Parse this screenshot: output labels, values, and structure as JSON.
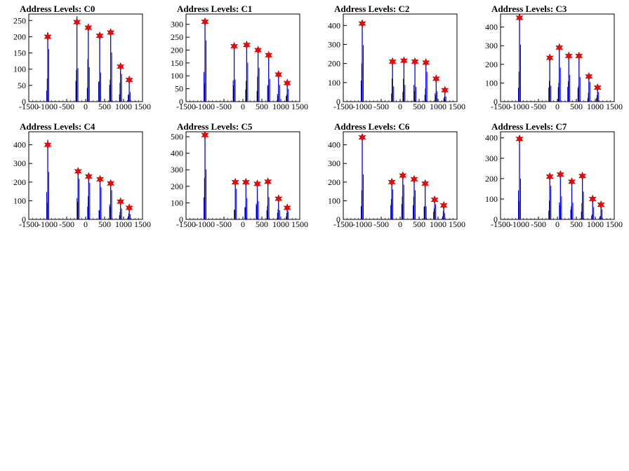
{
  "colors": {
    "histogram": "#0000ff",
    "marker": "#ff0000",
    "axis": "#000000"
  },
  "panels": [
    {
      "title": "Address Levels: C0",
      "yticks": [
        0,
        50,
        100,
        150,
        200,
        250
      ],
      "ymax": 270
    },
    {
      "title": "Address Levels: C1",
      "yticks": [
        0,
        50,
        100,
        150,
        200,
        250,
        300
      ],
      "ymax": 340
    },
    {
      "title": "Address Levels: C2",
      "yticks": [
        0,
        100,
        200,
        300,
        400
      ],
      "ymax": 460
    },
    {
      "title": "Address Levels: C3",
      "yticks": [
        0,
        100,
        200,
        300,
        400
      ],
      "ymax": 470
    },
    {
      "title": "Address Levels: C4",
      "yticks": [
        0,
        100,
        200,
        300,
        400
      ],
      "ymax": 470
    },
    {
      "title": "Address Levels: C5",
      "yticks": [
        0,
        100,
        200,
        300,
        400,
        500
      ],
      "ymax": 530
    },
    {
      "title": "Address Levels: C6",
      "yticks": [
        0,
        100,
        200,
        300,
        400
      ],
      "ymax": 470
    },
    {
      "title": "Address Levels: C7",
      "yticks": [
        0,
        100,
        200,
        300,
        400
      ],
      "ymax": 430
    }
  ],
  "chart_data": [
    {
      "type": "bar",
      "title": "Address Levels: C0",
      "xlim": [
        -1500,
        1500
      ],
      "ylim": [
        0,
        270
      ],
      "xticks": [
        "-1500",
        "-1000",
        "-500",
        "0",
        "500",
        "1000",
        "1500"
      ],
      "yticks": [
        "0",
        "50",
        "100",
        "150",
        "200",
        "250"
      ],
      "peaks": [
        {
          "x": -1000,
          "y": 200
        },
        {
          "x": -230,
          "y": 245
        },
        {
          "x": 70,
          "y": 228
        },
        {
          "x": 370,
          "y": 203
        },
        {
          "x": 660,
          "y": 213
        },
        {
          "x": 920,
          "y": 108
        },
        {
          "x": 1150,
          "y": 67
        }
      ]
    },
    {
      "type": "bar",
      "title": "Address Levels: C1",
      "xlim": [
        -1500,
        1500
      ],
      "ylim": [
        0,
        340
      ],
      "xticks": [
        "-1500",
        "-1000",
        "-500",
        "0",
        "500",
        "1000",
        "1500"
      ],
      "yticks": [
        "0",
        "50",
        "100",
        "150",
        "200",
        "250",
        "300"
      ],
      "peaks": [
        {
          "x": -1000,
          "y": 310
        },
        {
          "x": -230,
          "y": 215
        },
        {
          "x": 100,
          "y": 220
        },
        {
          "x": 400,
          "y": 200
        },
        {
          "x": 680,
          "y": 180
        },
        {
          "x": 940,
          "y": 105
        },
        {
          "x": 1170,
          "y": 72
        }
      ]
    },
    {
      "type": "bar",
      "title": "Address Levels: C2",
      "xlim": [
        -1500,
        1500
      ],
      "ylim": [
        0,
        460
      ],
      "xticks": [
        "-1500",
        "-1000",
        "-500",
        "0",
        "500",
        "1000",
        "1500"
      ],
      "yticks": [
        "0",
        "100",
        "200",
        "300",
        "400"
      ],
      "peaks": [
        {
          "x": -1000,
          "y": 410
        },
        {
          "x": -200,
          "y": 210
        },
        {
          "x": 100,
          "y": 215
        },
        {
          "x": 390,
          "y": 210
        },
        {
          "x": 680,
          "y": 205
        },
        {
          "x": 950,
          "y": 120
        },
        {
          "x": 1180,
          "y": 60
        }
      ]
    },
    {
      "type": "bar",
      "title": "Address Levels: C3",
      "xlim": [
        -1500,
        1500
      ],
      "ylim": [
        0,
        470
      ],
      "xticks": [
        "-1500",
        "-1000",
        "-500",
        "0",
        "500",
        "1000",
        "1500"
      ],
      "yticks": [
        "0",
        "100",
        "200",
        "300",
        "400"
      ],
      "peaks": [
        {
          "x": -1000,
          "y": 450
        },
        {
          "x": -200,
          "y": 235
        },
        {
          "x": 50,
          "y": 290
        },
        {
          "x": 300,
          "y": 245
        },
        {
          "x": 570,
          "y": 245
        },
        {
          "x": 830,
          "y": 135
        },
        {
          "x": 1060,
          "y": 75
        }
      ]
    },
    {
      "type": "bar",
      "title": "Address Levels: C4",
      "xlim": [
        -1500,
        1500
      ],
      "ylim": [
        0,
        470
      ],
      "xticks": [
        "-1500",
        "-1000",
        "-500",
        "0",
        "500",
        "1000",
        "1500"
      ],
      "yticks": [
        "0",
        "100",
        "200",
        "300",
        "400"
      ],
      "peaks": [
        {
          "x": -1000,
          "y": 400
        },
        {
          "x": -200,
          "y": 258
        },
        {
          "x": 80,
          "y": 230
        },
        {
          "x": 380,
          "y": 215
        },
        {
          "x": 660,
          "y": 193
        },
        {
          "x": 920,
          "y": 95
        },
        {
          "x": 1150,
          "y": 62
        }
      ]
    },
    {
      "type": "bar",
      "title": "Address Levels: C5",
      "xlim": [
        -1500,
        1500
      ],
      "ylim": [
        0,
        530
      ],
      "xticks": [
        "-1500",
        "-1000",
        "-500",
        "0",
        "500",
        "1000",
        "1500"
      ],
      "yticks": [
        "0",
        "100",
        "200",
        "300",
        "400",
        "500"
      ],
      "peaks": [
        {
          "x": -1000,
          "y": 510
        },
        {
          "x": -200,
          "y": 225
        },
        {
          "x": 80,
          "y": 225
        },
        {
          "x": 380,
          "y": 215
        },
        {
          "x": 660,
          "y": 228
        },
        {
          "x": 940,
          "y": 125
        },
        {
          "x": 1170,
          "y": 70
        }
      ]
    },
    {
      "type": "bar",
      "title": "Address Levels: C6",
      "xlim": [
        -1500,
        1500
      ],
      "ylim": [
        0,
        470
      ],
      "xticks": [
        "-1500",
        "-1000",
        "-500",
        "0",
        "500",
        "1000",
        "1500"
      ],
      "yticks": [
        "0",
        "100",
        "200",
        "300",
        "400"
      ],
      "peaks": [
        {
          "x": -1000,
          "y": 440
        },
        {
          "x": -220,
          "y": 200
        },
        {
          "x": 70,
          "y": 235
        },
        {
          "x": 370,
          "y": 215
        },
        {
          "x": 660,
          "y": 192
        },
        {
          "x": 910,
          "y": 105
        },
        {
          "x": 1150,
          "y": 75
        }
      ]
    },
    {
      "type": "bar",
      "title": "Address Levels: C7",
      "xlim": [
        -1500,
        1500
      ],
      "ylim": [
        0,
        430
      ],
      "xticks": [
        "-1500",
        "-1000",
        "-500",
        "0",
        "500",
        "1000",
        "1500"
      ],
      "yticks": [
        "0",
        "100",
        "200",
        "300",
        "400"
      ],
      "peaks": [
        {
          "x": -1000,
          "y": 395
        },
        {
          "x": -200,
          "y": 210
        },
        {
          "x": 80,
          "y": 220
        },
        {
          "x": 380,
          "y": 185
        },
        {
          "x": 660,
          "y": 213
        },
        {
          "x": 930,
          "y": 100
        },
        {
          "x": 1150,
          "y": 72
        }
      ]
    }
  ]
}
